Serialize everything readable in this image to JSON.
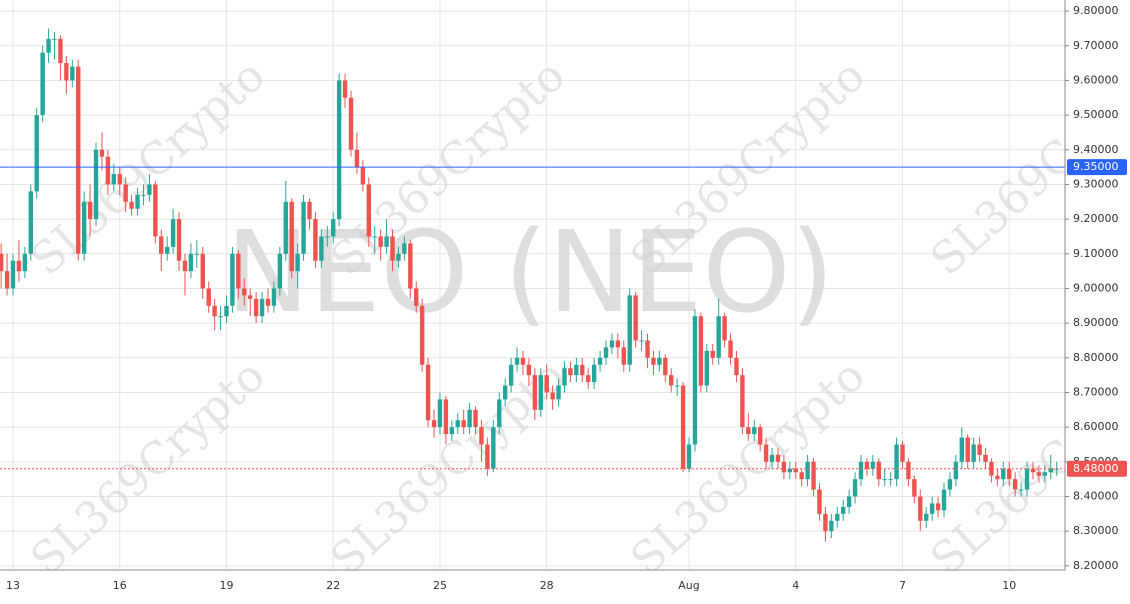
{
  "chart_data": {
    "type": "candlestick",
    "watermark": "NEO (NEO)",
    "watermark_tile": "SL369Crypto",
    "categories": [
      null,
      null,
      "13",
      null,
      null,
      null,
      null,
      null,
      null,
      null,
      null,
      null,
      null,
      null,
      null,
      null,
      null,
      null,
      null,
      null,
      "16",
      null,
      null,
      null,
      null,
      null,
      null,
      null,
      null,
      null,
      null,
      null,
      null,
      null,
      null,
      null,
      null,
      null,
      "19",
      null,
      null,
      null,
      null,
      null,
      null,
      null,
      null,
      null,
      null,
      null,
      null,
      null,
      null,
      null,
      null,
      null,
      "22",
      null,
      null,
      null,
      null,
      null,
      null,
      null,
      null,
      null,
      null,
      null,
      null,
      null,
      null,
      null,
      null,
      null,
      "25",
      null,
      null,
      null,
      null,
      null,
      null,
      null,
      null,
      null,
      null,
      null,
      null,
      null,
      null,
      null,
      null,
      null,
      "28",
      null,
      null,
      null,
      null,
      null,
      null,
      null,
      null,
      null,
      null,
      null,
      null,
      null,
      null,
      null,
      null,
      null,
      null,
      null,
      null,
      null,
      null,
      null,
      "Aug",
      null,
      null,
      null,
      null,
      null,
      null,
      null,
      null,
      null,
      null,
      null,
      null,
      null,
      null,
      null,
      null,
      null,
      "4",
      null,
      null,
      null,
      null,
      null,
      null,
      null,
      null,
      null,
      null,
      null,
      null,
      null,
      null,
      null,
      null,
      null,
      "7",
      null,
      null,
      null,
      null,
      null,
      null,
      null,
      null,
      null,
      null,
      null,
      null,
      null,
      null,
      null,
      null,
      null,
      "10",
      null,
      null,
      null,
      null,
      null,
      null,
      null,
      null
    ],
    "ohlc": [
      [
        9.1,
        9.13,
        9.0,
        9.05
      ],
      [
        9.05,
        9.1,
        8.98,
        9.0
      ],
      [
        9.0,
        9.1,
        8.98,
        9.08
      ],
      [
        9.08,
        9.14,
        9.02,
        9.05
      ],
      [
        9.05,
        9.12,
        9.03,
        9.1
      ],
      [
        9.1,
        9.3,
        9.08,
        9.28
      ],
      [
        9.28,
        9.52,
        9.26,
        9.5
      ],
      [
        9.5,
        9.7,
        9.48,
        9.68
      ],
      [
        9.68,
        9.75,
        9.65,
        9.72
      ],
      [
        9.72,
        9.74,
        9.66,
        9.72
      ],
      [
        9.72,
        9.73,
        9.6,
        9.65
      ],
      [
        9.65,
        9.67,
        9.56,
        9.6
      ],
      [
        9.6,
        9.66,
        9.58,
        9.64
      ],
      [
        9.64,
        9.66,
        9.08,
        9.1
      ],
      [
        9.1,
        9.28,
        9.08,
        9.25
      ],
      [
        9.25,
        9.3,
        9.15,
        9.2
      ],
      [
        9.2,
        9.42,
        9.18,
        9.4
      ],
      [
        9.4,
        9.45,
        9.34,
        9.38
      ],
      [
        9.38,
        9.4,
        9.27,
        9.3
      ],
      [
        9.3,
        9.36,
        9.28,
        9.33
      ],
      [
        9.33,
        9.35,
        9.27,
        9.3
      ],
      [
        9.3,
        9.32,
        9.22,
        9.25
      ],
      [
        9.25,
        9.27,
        9.21,
        9.23
      ],
      [
        9.23,
        9.29,
        9.21,
        9.27
      ],
      [
        9.27,
        9.3,
        9.24,
        9.27
      ],
      [
        9.27,
        9.33,
        9.25,
        9.3
      ],
      [
        9.3,
        9.31,
        9.13,
        9.15
      ],
      [
        9.15,
        9.17,
        9.05,
        9.1
      ],
      [
        9.1,
        9.15,
        9.08,
        9.12
      ],
      [
        9.12,
        9.23,
        9.1,
        9.2
      ],
      [
        9.2,
        9.22,
        9.05,
        9.08
      ],
      [
        9.08,
        9.1,
        8.98,
        9.05
      ],
      [
        9.05,
        9.13,
        9.03,
        9.1
      ],
      [
        9.1,
        9.14,
        9.06,
        9.1
      ],
      [
        9.1,
        9.12,
        8.97,
        9.0
      ],
      [
        9.0,
        9.02,
        8.93,
        8.95
      ],
      [
        8.95,
        8.97,
        8.88,
        8.92
      ],
      [
        8.92,
        8.95,
        8.88,
        8.92
      ],
      [
        8.92,
        8.98,
        8.9,
        8.95
      ],
      [
        8.95,
        9.12,
        8.93,
        9.1
      ],
      [
        9.1,
        9.11,
        8.97,
        9.0
      ],
      [
        9.0,
        9.03,
        8.95,
        8.98
      ],
      [
        8.98,
        9.0,
        8.92,
        8.97
      ],
      [
        8.97,
        8.99,
        8.9,
        8.92
      ],
      [
        8.92,
        8.99,
        8.9,
        8.97
      ],
      [
        8.97,
        9.0,
        8.93,
        8.95
      ],
      [
        8.95,
        9.02,
        8.93,
        9.0
      ],
      [
        9.0,
        9.12,
        8.98,
        9.1
      ],
      [
        9.1,
        9.31,
        9.08,
        9.25
      ],
      [
        9.25,
        9.26,
        9.03,
        9.05
      ],
      [
        9.05,
        9.13,
        9.0,
        9.1
      ],
      [
        9.1,
        9.27,
        9.08,
        9.25
      ],
      [
        9.25,
        9.26,
        9.17,
        9.2
      ],
      [
        9.2,
        9.22,
        9.06,
        9.08
      ],
      [
        9.08,
        9.17,
        9.06,
        9.15
      ],
      [
        9.15,
        9.18,
        9.12,
        9.15
      ],
      [
        9.15,
        9.22,
        9.13,
        9.2
      ],
      [
        9.2,
        9.62,
        9.18,
        9.6
      ],
      [
        9.6,
        9.62,
        9.52,
        9.55
      ],
      [
        9.55,
        9.57,
        9.38,
        9.4
      ],
      [
        9.4,
        9.45,
        9.33,
        9.35
      ],
      [
        9.35,
        9.37,
        9.28,
        9.3
      ],
      [
        9.3,
        9.32,
        9.12,
        9.15
      ],
      [
        9.15,
        9.18,
        9.1,
        9.15
      ],
      [
        9.15,
        9.17,
        9.08,
        9.12
      ],
      [
        9.12,
        9.2,
        9.1,
        9.15
      ],
      [
        9.15,
        9.17,
        9.05,
        9.08
      ],
      [
        9.08,
        9.12,
        9.06,
        9.1
      ],
      [
        9.1,
        9.15,
        9.08,
        9.13
      ],
      [
        9.13,
        9.14,
        8.97,
        9.0
      ],
      [
        9.0,
        9.02,
        8.93,
        8.95
      ],
      [
        8.95,
        8.97,
        8.76,
        8.78
      ],
      [
        8.78,
        8.8,
        8.6,
        8.62
      ],
      [
        8.62,
        8.65,
        8.57,
        8.6
      ],
      [
        8.6,
        8.7,
        8.58,
        8.68
      ],
      [
        8.68,
        8.69,
        8.55,
        8.58
      ],
      [
        8.58,
        8.62,
        8.56,
        8.6
      ],
      [
        8.6,
        8.64,
        8.58,
        8.62
      ],
      [
        8.62,
        8.65,
        8.58,
        8.6
      ],
      [
        8.6,
        8.67,
        8.58,
        8.65
      ],
      [
        8.65,
        8.66,
        8.58,
        8.6
      ],
      [
        8.6,
        8.62,
        8.5,
        8.55
      ],
      [
        8.55,
        8.57,
        8.46,
        8.48
      ],
      [
        8.48,
        8.62,
        8.47,
        8.6
      ],
      [
        8.6,
        8.7,
        8.58,
        8.68
      ],
      [
        8.68,
        8.74,
        8.66,
        8.72
      ],
      [
        8.72,
        8.8,
        8.7,
        8.78
      ],
      [
        8.78,
        8.83,
        8.76,
        8.8
      ],
      [
        8.8,
        8.82,
        8.75,
        8.78
      ],
      [
        8.78,
        8.8,
        8.72,
        8.75
      ],
      [
        8.75,
        8.77,
        8.62,
        8.65
      ],
      [
        8.65,
        8.77,
        8.63,
        8.75
      ],
      [
        8.75,
        8.78,
        8.68,
        8.7
      ],
      [
        8.7,
        8.72,
        8.65,
        8.68
      ],
      [
        8.68,
        8.74,
        8.66,
        8.72
      ],
      [
        8.72,
        8.79,
        8.7,
        8.77
      ],
      [
        8.77,
        8.79,
        8.73,
        8.75
      ],
      [
        8.75,
        8.8,
        8.73,
        8.78
      ],
      [
        8.78,
        8.8,
        8.73,
        8.75
      ],
      [
        8.75,
        8.77,
        8.71,
        8.73
      ],
      [
        8.73,
        8.8,
        8.71,
        8.78
      ],
      [
        8.78,
        8.82,
        8.76,
        8.8
      ],
      [
        8.8,
        8.85,
        8.78,
        8.83
      ],
      [
        8.83,
        8.87,
        8.81,
        8.85
      ],
      [
        8.85,
        8.87,
        8.8,
        8.83
      ],
      [
        8.83,
        8.85,
        8.76,
        8.78
      ],
      [
        8.78,
        9.0,
        8.76,
        8.98
      ],
      [
        8.98,
        8.99,
        8.83,
        8.85
      ],
      [
        8.85,
        8.88,
        8.82,
        8.85
      ],
      [
        8.85,
        8.87,
        8.77,
        8.8
      ],
      [
        8.8,
        8.82,
        8.75,
        8.78
      ],
      [
        8.78,
        8.82,
        8.76,
        8.8
      ],
      [
        8.8,
        8.81,
        8.73,
        8.75
      ],
      [
        8.75,
        8.77,
        8.7,
        8.72
      ],
      [
        8.72,
        8.74,
        8.69,
        8.72
      ],
      [
        8.72,
        8.73,
        8.47,
        8.48
      ],
      [
        8.48,
        8.57,
        8.47,
        8.55
      ],
      [
        8.55,
        8.94,
        8.53,
        8.92
      ],
      [
        8.92,
        8.93,
        8.7,
        8.72
      ],
      [
        8.72,
        8.84,
        8.7,
        8.82
      ],
      [
        8.82,
        8.84,
        8.78,
        8.8
      ],
      [
        8.8,
        8.97,
        8.78,
        8.92
      ],
      [
        8.92,
        8.93,
        8.83,
        8.85
      ],
      [
        8.85,
        8.87,
        8.78,
        8.8
      ],
      [
        8.8,
        8.82,
        8.73,
        8.75
      ],
      [
        8.75,
        8.77,
        8.58,
        8.6
      ],
      [
        8.6,
        8.64,
        8.56,
        8.58
      ],
      [
        8.58,
        8.62,
        8.56,
        8.6
      ],
      [
        8.6,
        8.61,
        8.53,
        8.55
      ],
      [
        8.55,
        8.57,
        8.48,
        8.5
      ],
      [
        8.5,
        8.54,
        8.48,
        8.52
      ],
      [
        8.52,
        8.54,
        8.48,
        8.5
      ],
      [
        8.5,
        8.52,
        8.45,
        8.47
      ],
      [
        8.47,
        8.5,
        8.45,
        8.48
      ],
      [
        8.48,
        8.5,
        8.45,
        8.47
      ],
      [
        8.47,
        8.48,
        8.43,
        8.45
      ],
      [
        8.45,
        8.52,
        8.43,
        8.5
      ],
      [
        8.5,
        8.51,
        8.4,
        8.42
      ],
      [
        8.42,
        8.44,
        8.33,
        8.35
      ],
      [
        8.35,
        8.37,
        8.27,
        8.3
      ],
      [
        8.3,
        8.35,
        8.28,
        8.33
      ],
      [
        8.33,
        8.37,
        8.31,
        8.35
      ],
      [
        8.35,
        8.39,
        8.33,
        8.37
      ],
      [
        8.37,
        8.42,
        8.35,
        8.4
      ],
      [
        8.4,
        8.47,
        8.38,
        8.45
      ],
      [
        8.45,
        8.52,
        8.43,
        8.5
      ],
      [
        8.5,
        8.51,
        8.46,
        8.48
      ],
      [
        8.48,
        8.52,
        8.46,
        8.5
      ],
      [
        8.5,
        8.51,
        8.43,
        8.45
      ],
      [
        8.45,
        8.48,
        8.43,
        8.45
      ],
      [
        8.45,
        8.47,
        8.43,
        8.45
      ],
      [
        8.45,
        8.57,
        8.43,
        8.55
      ],
      [
        8.55,
        8.56,
        8.48,
        8.5
      ],
      [
        8.5,
        8.51,
        8.43,
        8.45
      ],
      [
        8.45,
        8.46,
        8.38,
        8.4
      ],
      [
        8.4,
        8.42,
        8.3,
        8.33
      ],
      [
        8.33,
        8.37,
        8.31,
        8.35
      ],
      [
        8.35,
        8.4,
        8.33,
        8.38
      ],
      [
        8.38,
        8.4,
        8.34,
        8.36
      ],
      [
        8.36,
        8.44,
        8.34,
        8.42
      ],
      [
        8.42,
        8.47,
        8.4,
        8.45
      ],
      [
        8.45,
        8.52,
        8.43,
        8.5
      ],
      [
        8.5,
        8.6,
        8.48,
        8.57
      ],
      [
        8.57,
        8.58,
        8.48,
        8.5
      ],
      [
        8.5,
        8.57,
        8.48,
        8.55
      ],
      [
        8.55,
        8.57,
        8.5,
        8.52
      ],
      [
        8.52,
        8.54,
        8.48,
        8.5
      ],
      [
        8.5,
        8.51,
        8.44,
        8.46
      ],
      [
        8.46,
        8.48,
        8.43,
        8.45
      ],
      [
        8.45,
        8.5,
        8.43,
        8.48
      ],
      [
        8.48,
        8.5,
        8.43,
        8.45
      ],
      [
        8.45,
        8.47,
        8.4,
        8.42
      ],
      [
        8.42,
        8.44,
        8.4,
        8.42
      ],
      [
        8.42,
        8.5,
        8.4,
        8.48
      ],
      [
        8.48,
        8.5,
        8.45,
        8.47
      ],
      [
        8.47,
        8.49,
        8.44,
        8.46
      ],
      [
        8.46,
        8.49,
        8.44,
        8.47
      ],
      [
        8.47,
        8.52,
        8.45,
        8.48
      ],
      [
        8.48,
        8.5,
        8.46,
        8.48
      ]
    ],
    "up_color": "#26a69a",
    "down_color": "#ef5350",
    "ylim": [
      8.188,
      9.832
    ],
    "yticks": [
      {
        "value": 8.2,
        "label": "8.20000"
      },
      {
        "value": 8.3,
        "label": "8.30000"
      },
      {
        "value": 8.4,
        "label": "8.40000"
      },
      {
        "value": 8.5,
        "label": "8.50000"
      },
      {
        "value": 8.6,
        "label": "8.60000"
      },
      {
        "value": 8.7,
        "label": "8.70000"
      },
      {
        "value": 8.8,
        "label": "8.80000"
      },
      {
        "value": 8.9,
        "label": "8.90000"
      },
      {
        "value": 9.0,
        "label": "9.00000"
      },
      {
        "value": 9.1,
        "label": "9.10000"
      },
      {
        "value": 9.2,
        "label": "9.20000"
      },
      {
        "value": 9.3,
        "label": "9.30000"
      },
      {
        "value": 9.4,
        "label": "9.40000"
      },
      {
        "value": 9.5,
        "label": "9.50000"
      },
      {
        "value": 9.6,
        "label": "9.60000"
      },
      {
        "value": 9.7,
        "label": "9.70000"
      },
      {
        "value": 9.8,
        "label": "9.80000"
      }
    ],
    "price_lines": [
      {
        "value": 9.35,
        "label": "9.35000",
        "color": "#2962ff",
        "style": "solid"
      },
      {
        "value": 8.48,
        "label": "8.48000",
        "color": "#ef5350",
        "style": "dotted"
      }
    ],
    "grid": true
  }
}
